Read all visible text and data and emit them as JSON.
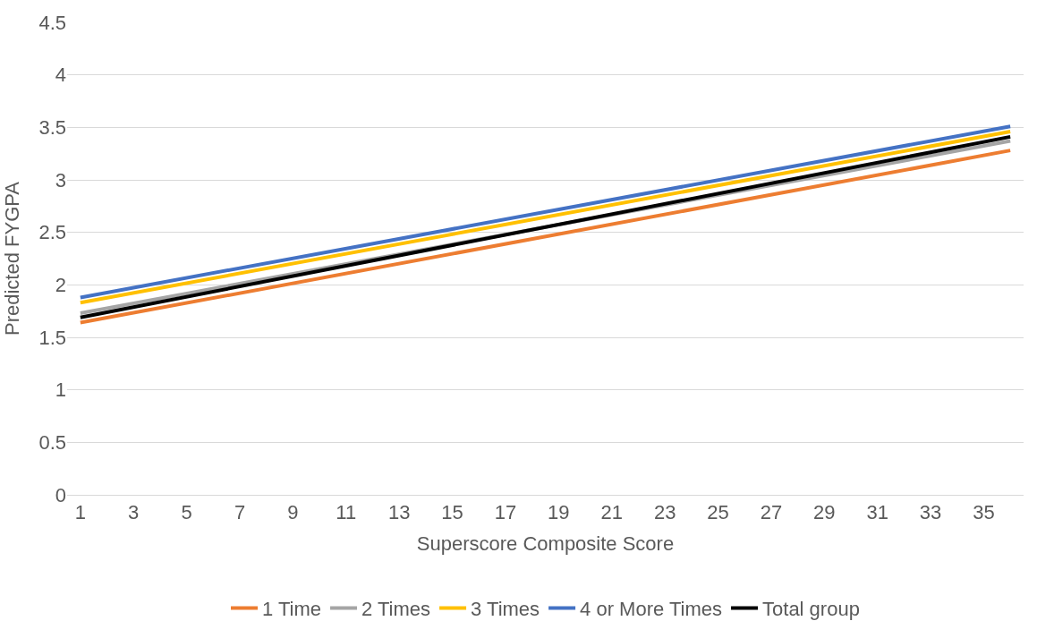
{
  "chart_data": {
    "type": "line",
    "xlabel": "Superscore Composite Score",
    "ylabel": "Predicted FYGPA",
    "x": [
      1,
      36
    ],
    "series": [
      {
        "name": "1 Time",
        "color": "#ed7d31",
        "values": [
          1.64,
          3.28
        ]
      },
      {
        "name": "2 Times",
        "color": "#a5a5a5",
        "values": [
          1.73,
          3.37
        ]
      },
      {
        "name": "3 Times",
        "color": "#ffc000",
        "values": [
          1.83,
          3.46
        ]
      },
      {
        "name": "4 or More Times",
        "color": "#4472c4",
        "values": [
          1.88,
          3.51
        ]
      },
      {
        "name": "Total group",
        "color": "#000000",
        "values": [
          1.69,
          3.41
        ]
      }
    ],
    "xlim": [
      0.5,
      36.5
    ],
    "xticks": [
      1,
      3,
      5,
      7,
      9,
      11,
      13,
      15,
      17,
      19,
      21,
      23,
      25,
      27,
      29,
      31,
      33,
      35
    ],
    "ylim": [
      0,
      4.5
    ],
    "yticks": [
      0,
      0.5,
      1,
      1.5,
      2,
      2.5,
      3,
      3.5,
      4,
      4.5
    ],
    "grid": "y",
    "legend": "bottom",
    "marker": "none",
    "line_style": "solid"
  }
}
